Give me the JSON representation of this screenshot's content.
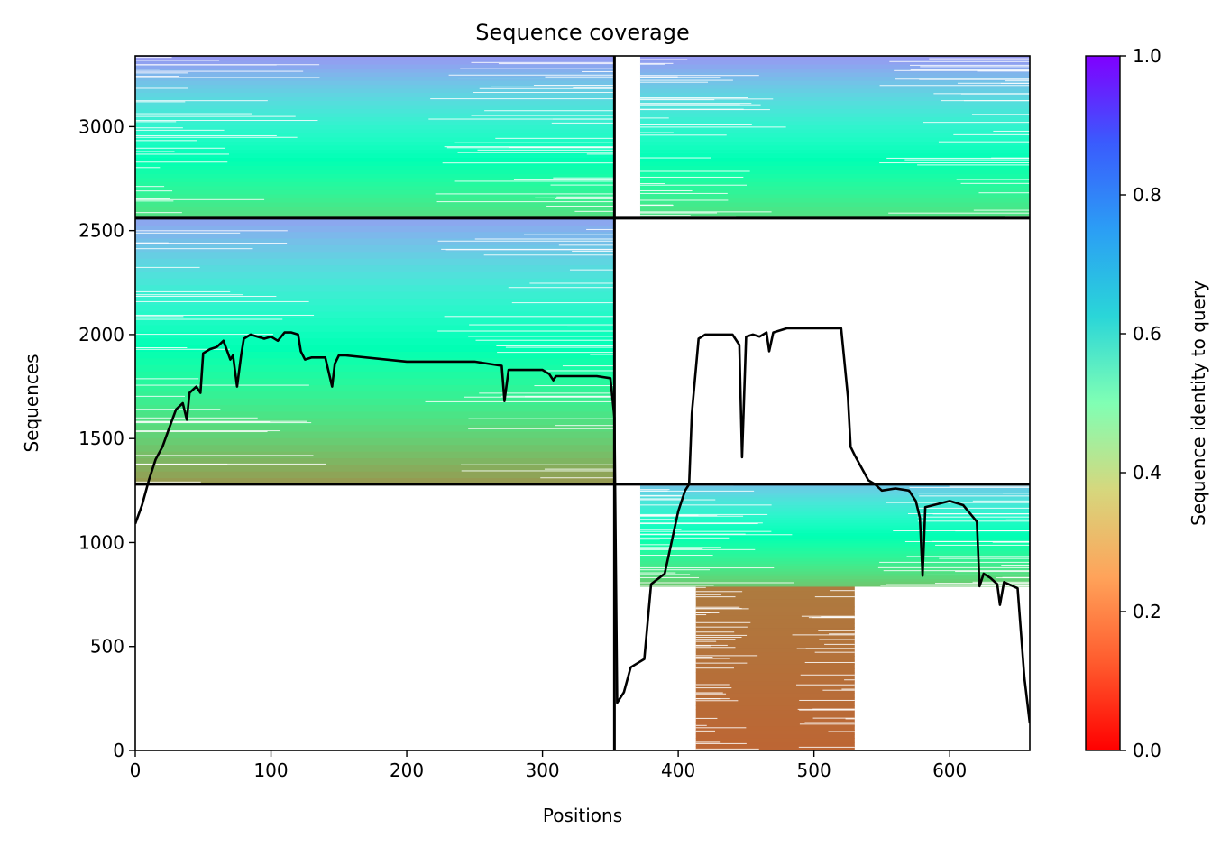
{
  "chart_data": {
    "type": "heatmap",
    "title": "Sequence coverage",
    "xlabel": "Positions",
    "ylabel": "Sequences",
    "colorbar_label": "Sequence identity to query",
    "xlim": [
      0,
      659
    ],
    "ylim": [
      0,
      3340
    ],
    "x_ticks": [
      {
        "value": 0,
        "label": "0"
      },
      {
        "value": 100,
        "label": "100"
      },
      {
        "value": 200,
        "label": "200"
      },
      {
        "value": 300,
        "label": "300"
      },
      {
        "value": 400,
        "label": "400"
      },
      {
        "value": 500,
        "label": "500"
      },
      {
        "value": 600,
        "label": "600"
      }
    ],
    "y_ticks": [
      {
        "value": 0,
        "label": "0"
      },
      {
        "value": 500,
        "label": "500"
      },
      {
        "value": 1000,
        "label": "1000"
      },
      {
        "value": 1500,
        "label": "1500"
      },
      {
        "value": 2000,
        "label": "2000"
      },
      {
        "value": 2500,
        "label": "2500"
      },
      {
        "value": 3000,
        "label": "3000"
      }
    ],
    "colorbar_ticks": [
      {
        "value": 0.0,
        "label": "0.0"
      },
      {
        "value": 0.2,
        "label": "0.2"
      },
      {
        "value": 0.4,
        "label": "0.4"
      },
      {
        "value": 0.6,
        "label": "0.6"
      },
      {
        "value": 0.8,
        "label": "0.8"
      },
      {
        "value": 1.0,
        "label": "1.0"
      }
    ],
    "colormap": "rainbow_r",
    "chain_boundary_x": 353,
    "group_boundaries_y": [
      1280,
      2560
    ],
    "blocks": [
      {
        "name": "chain1-group2",
        "x0": 0,
        "x1": 353,
        "y0": 1280,
        "y1": 2560,
        "id_bottom": 0.2,
        "id_top": 0.78
      },
      {
        "name": "chain1-group3",
        "x0": 0,
        "x1": 353,
        "y0": 2560,
        "y1": 3340,
        "id_bottom": 0.33,
        "id_top": 0.8
      },
      {
        "name": "chain2-group1-low",
        "x0": 413,
        "x1": 530,
        "y0": 0,
        "y1": 790,
        "id_bottom": 0.13,
        "id_top": 0.16
      },
      {
        "name": "chain2-group1-high",
        "x0": 372,
        "x1": 659,
        "y0": 790,
        "y1": 1280,
        "id_bottom": 0.28,
        "id_top": 0.72
      },
      {
        "name": "chain2-group3",
        "x0": 372,
        "x1": 659,
        "y0": 2560,
        "y1": 3340,
        "id_bottom": 0.33,
        "id_top": 0.8
      }
    ],
    "coverage_line": {
      "x": [
        0,
        5,
        10,
        15,
        20,
        25,
        30,
        35,
        38,
        40,
        45,
        48,
        50,
        55,
        60,
        65,
        70,
        72,
        75,
        78,
        80,
        85,
        90,
        95,
        100,
        105,
        110,
        115,
        120,
        122,
        125,
        130,
        140,
        145,
        147,
        150,
        155,
        200,
        250,
        270,
        272,
        275,
        300,
        305,
        308,
        310,
        340,
        350,
        353,
        355,
        360,
        365,
        370,
        375,
        380,
        390,
        395,
        400,
        405,
        408,
        410,
        415,
        420,
        440,
        445,
        447,
        450,
        455,
        460,
        465,
        467,
        470,
        480,
        500,
        520,
        525,
        527,
        530,
        540,
        545,
        550,
        560,
        570,
        575,
        578,
        580,
        582,
        600,
        610,
        620,
        622,
        625,
        630,
        635,
        637,
        640,
        650,
        655,
        659
      ],
      "y": [
        1090,
        1180,
        1300,
        1400,
        1460,
        1550,
        1640,
        1670,
        1590,
        1720,
        1750,
        1720,
        1910,
        1930,
        1940,
        1970,
        1880,
        1900,
        1750,
        1900,
        1980,
        2000,
        1990,
        1980,
        1990,
        1970,
        2010,
        2010,
        2000,
        1920,
        1880,
        1890,
        1890,
        1750,
        1860,
        1900,
        1900,
        1870,
        1870,
        1850,
        1680,
        1830,
        1830,
        1810,
        1780,
        1800,
        1800,
        1790,
        1600,
        230,
        280,
        400,
        420,
        440,
        800,
        850,
        1000,
        1150,
        1250,
        1280,
        1620,
        1980,
        2000,
        2000,
        1950,
        1410,
        1990,
        2000,
        1990,
        2010,
        1920,
        2010,
        2030,
        2030,
        2030,
        1700,
        1460,
        1420,
        1300,
        1280,
        1250,
        1260,
        1250,
        1200,
        1120,
        840,
        1170,
        1200,
        1180,
        1100,
        790,
        850,
        830,
        800,
        700,
        810,
        780,
        350,
        130
      ]
    }
  }
}
